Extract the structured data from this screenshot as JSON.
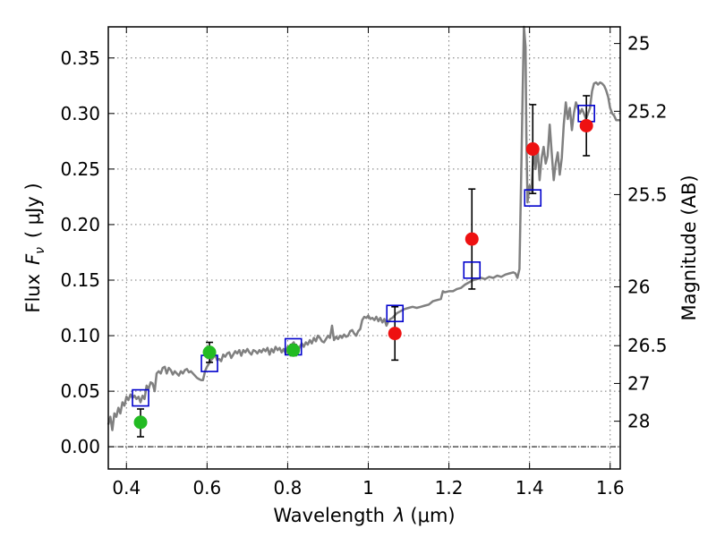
{
  "chart_data": {
    "type": "scatter",
    "xlabel_main": "Wavelength",
    "xlabel_symbol": "λ",
    "xlabel_unit": "(μm)",
    "ylabel_main": "Flux",
    "ylabel_symbol": "F",
    "ylabel_subscript": "ν",
    "ylabel_unit": "( μJy )",
    "y2label": "Magnitude (AB)",
    "xlim": [
      0.355,
      1.625
    ],
    "ylim": [
      -0.02,
      0.378
    ],
    "x_ticks": [
      {
        "value": 0.4,
        "label": "0.4"
      },
      {
        "value": 0.6,
        "label": "0.6"
      },
      {
        "value": 0.8,
        "label": "0.8"
      },
      {
        "value": 1.0,
        "label": "1"
      },
      {
        "value": 1.2,
        "label": "1.2"
      },
      {
        "value": 1.4,
        "label": "1.4"
      },
      {
        "value": 1.6,
        "label": "1.6"
      }
    ],
    "y_ticks": [
      {
        "value": 0.0,
        "label": "0.00"
      },
      {
        "value": 0.05,
        "label": "0.05"
      },
      {
        "value": 0.1,
        "label": "0.10"
      },
      {
        "value": 0.15,
        "label": "0.15"
      },
      {
        "value": 0.2,
        "label": "0.20"
      },
      {
        "value": 0.25,
        "label": "0.25"
      },
      {
        "value": 0.3,
        "label": "0.30"
      },
      {
        "value": 0.35,
        "label": "0.35"
      }
    ],
    "mag_ticks": [
      {
        "value": 0.363,
        "label": "25"
      },
      {
        "value": 0.302,
        "label": "25.2"
      },
      {
        "value": 0.227,
        "label": "25.5"
      },
      {
        "value": 0.144,
        "label": "26"
      },
      {
        "value": 0.091,
        "label": "26.5"
      },
      {
        "value": 0.057,
        "label": "27"
      },
      {
        "value": 0.023,
        "label": "28"
      }
    ],
    "grid": true,
    "zero_line": 0.0,
    "colors": {
      "model": "#808080",
      "model_points": "#0000cc",
      "optical": "#22bb22",
      "nir": "#ee1111",
      "errorbar": "#000000"
    },
    "model_spectrum": [
      [
        0.355,
        0.02
      ],
      [
        0.36,
        0.027
      ],
      [
        0.365,
        0.015
      ],
      [
        0.37,
        0.03
      ],
      [
        0.375,
        0.027
      ],
      [
        0.38,
        0.035
      ],
      [
        0.385,
        0.03
      ],
      [
        0.39,
        0.04
      ],
      [
        0.395,
        0.037
      ],
      [
        0.4,
        0.045
      ],
      [
        0.405,
        0.042
      ],
      [
        0.41,
        0.047
      ],
      [
        0.415,
        0.044
      ],
      [
        0.42,
        0.046
      ],
      [
        0.425,
        0.043
      ],
      [
        0.43,
        0.045
      ],
      [
        0.435,
        0.04
      ],
      [
        0.44,
        0.046
      ],
      [
        0.445,
        0.043
      ],
      [
        0.45,
        0.055
      ],
      [
        0.455,
        0.052
      ],
      [
        0.46,
        0.058
      ],
      [
        0.465,
        0.057
      ],
      [
        0.47,
        0.05
      ],
      [
        0.475,
        0.066
      ],
      [
        0.48,
        0.068
      ],
      [
        0.485,
        0.066
      ],
      [
        0.49,
        0.071
      ],
      [
        0.495,
        0.072
      ],
      [
        0.5,
        0.066
      ],
      [
        0.505,
        0.071
      ],
      [
        0.51,
        0.069
      ],
      [
        0.515,
        0.065
      ],
      [
        0.52,
        0.068
      ],
      [
        0.525,
        0.066
      ],
      [
        0.53,
        0.064
      ],
      [
        0.535,
        0.068
      ],
      [
        0.54,
        0.066
      ],
      [
        0.545,
        0.069
      ],
      [
        0.55,
        0.07
      ],
      [
        0.555,
        0.067
      ],
      [
        0.56,
        0.068
      ],
      [
        0.565,
        0.066
      ],
      [
        0.57,
        0.064
      ],
      [
        0.575,
        0.062
      ],
      [
        0.58,
        0.061
      ],
      [
        0.585,
        0.06
      ],
      [
        0.59,
        0.06
      ],
      [
        0.595,
        0.068
      ],
      [
        0.6,
        0.072
      ],
      [
        0.605,
        0.075
      ],
      [
        0.61,
        0.078
      ],
      [
        0.615,
        0.08
      ],
      [
        0.62,
        0.083
      ],
      [
        0.625,
        0.078
      ],
      [
        0.63,
        0.079
      ],
      [
        0.635,
        0.077
      ],
      [
        0.64,
        0.083
      ],
      [
        0.645,
        0.081
      ],
      [
        0.65,
        0.084
      ],
      [
        0.655,
        0.085
      ],
      [
        0.66,
        0.08
      ],
      [
        0.665,
        0.083
      ],
      [
        0.67,
        0.086
      ],
      [
        0.675,
        0.084
      ],
      [
        0.68,
        0.087
      ],
      [
        0.685,
        0.082
      ],
      [
        0.69,
        0.087
      ],
      [
        0.695,
        0.085
      ],
      [
        0.7,
        0.088
      ],
      [
        0.705,
        0.085
      ],
      [
        0.71,
        0.083
      ],
      [
        0.715,
        0.087
      ],
      [
        0.72,
        0.086
      ],
      [
        0.725,
        0.084
      ],
      [
        0.73,
        0.087
      ],
      [
        0.735,
        0.085
      ],
      [
        0.74,
        0.088
      ],
      [
        0.745,
        0.086
      ],
      [
        0.75,
        0.089
      ],
      [
        0.755,
        0.083
      ],
      [
        0.76,
        0.088
      ],
      [
        0.765,
        0.085
      ],
      [
        0.77,
        0.09
      ],
      [
        0.775,
        0.087
      ],
      [
        0.78,
        0.089
      ],
      [
        0.785,
        0.085
      ],
      [
        0.79,
        0.088
      ],
      [
        0.795,
        0.084
      ],
      [
        0.8,
        0.09
      ],
      [
        0.805,
        0.088
      ],
      [
        0.81,
        0.092
      ],
      [
        0.815,
        0.094
      ],
      [
        0.82,
        0.09
      ],
      [
        0.825,
        0.085
      ],
      [
        0.83,
        0.09
      ],
      [
        0.835,
        0.093
      ],
      [
        0.84,
        0.09
      ],
      [
        0.845,
        0.094
      ],
      [
        0.85,
        0.092
      ],
      [
        0.855,
        0.096
      ],
      [
        0.86,
        0.093
      ],
      [
        0.865,
        0.098
      ],
      [
        0.87,
        0.095
      ],
      [
        0.875,
        0.1
      ],
      [
        0.88,
        0.098
      ],
      [
        0.885,
        0.095
      ],
      [
        0.89,
        0.094
      ],
      [
        0.895,
        0.097
      ],
      [
        0.9,
        0.1
      ],
      [
        0.905,
        0.098
      ],
      [
        0.91,
        0.109
      ],
      [
        0.915,
        0.096
      ],
      [
        0.92,
        0.099
      ],
      [
        0.925,
        0.097
      ],
      [
        0.93,
        0.1
      ],
      [
        0.935,
        0.098
      ],
      [
        0.94,
        0.101
      ],
      [
        0.945,
        0.099
      ],
      [
        0.95,
        0.1
      ],
      [
        0.955,
        0.104
      ],
      [
        0.96,
        0.105
      ],
      [
        0.965,
        0.102
      ],
      [
        0.97,
        0.1
      ],
      [
        0.975,
        0.104
      ],
      [
        0.98,
        0.106
      ],
      [
        0.985,
        0.114
      ],
      [
        0.99,
        0.117
      ],
      [
        0.995,
        0.116
      ],
      [
        1.0,
        0.118
      ],
      [
        1.005,
        0.115
      ],
      [
        1.01,
        0.116
      ],
      [
        1.015,
        0.114
      ],
      [
        1.02,
        0.117
      ],
      [
        1.025,
        0.113
      ],
      [
        1.03,
        0.116
      ],
      [
        1.035,
        0.112
      ],
      [
        1.04,
        0.115
      ],
      [
        1.045,
        0.109
      ],
      [
        1.05,
        0.113
      ],
      [
        1.055,
        0.115
      ],
      [
        1.06,
        0.116
      ],
      [
        1.065,
        0.118
      ],
      [
        1.07,
        0.12
      ],
      [
        1.08,
        0.122
      ],
      [
        1.09,
        0.124
      ],
      [
        1.1,
        0.125
      ],
      [
        1.11,
        0.126
      ],
      [
        1.12,
        0.125
      ],
      [
        1.13,
        0.126
      ],
      [
        1.14,
        0.127
      ],
      [
        1.15,
        0.128
      ],
      [
        1.16,
        0.131
      ],
      [
        1.17,
        0.132
      ],
      [
        1.18,
        0.133
      ],
      [
        1.185,
        0.14
      ],
      [
        1.19,
        0.139
      ],
      [
        1.2,
        0.14
      ],
      [
        1.21,
        0.14
      ],
      [
        1.22,
        0.142
      ],
      [
        1.23,
        0.143
      ],
      [
        1.24,
        0.146
      ],
      [
        1.25,
        0.148
      ],
      [
        1.26,
        0.15
      ],
      [
        1.27,
        0.151
      ],
      [
        1.28,
        0.152
      ],
      [
        1.29,
        0.151
      ],
      [
        1.3,
        0.153
      ],
      [
        1.31,
        0.152
      ],
      [
        1.32,
        0.154
      ],
      [
        1.33,
        0.153
      ],
      [
        1.34,
        0.155
      ],
      [
        1.35,
        0.156
      ],
      [
        1.36,
        0.157
      ],
      [
        1.365,
        0.156
      ],
      [
        1.37,
        0.152
      ],
      [
        1.375,
        0.16
      ],
      [
        1.38,
        0.26
      ],
      [
        1.383,
        0.32
      ],
      [
        1.386,
        0.378
      ],
      [
        1.39,
        0.36
      ],
      [
        1.392,
        0.28
      ],
      [
        1.395,
        0.22
      ],
      [
        1.4,
        0.235
      ],
      [
        1.405,
        0.23
      ],
      [
        1.41,
        0.27
      ],
      [
        1.415,
        0.25
      ],
      [
        1.42,
        0.27
      ],
      [
        1.425,
        0.24
      ],
      [
        1.43,
        0.26
      ],
      [
        1.435,
        0.27
      ],
      [
        1.44,
        0.255
      ],
      [
        1.445,
        0.262
      ],
      [
        1.45,
        0.29
      ],
      [
        1.455,
        0.265
      ],
      [
        1.46,
        0.24
      ],
      [
        1.465,
        0.255
      ],
      [
        1.47,
        0.265
      ],
      [
        1.475,
        0.245
      ],
      [
        1.48,
        0.26
      ],
      [
        1.485,
        0.29
      ],
      [
        1.49,
        0.31
      ],
      [
        1.495,
        0.295
      ],
      [
        1.5,
        0.305
      ],
      [
        1.505,
        0.285
      ],
      [
        1.51,
        0.3
      ],
      [
        1.515,
        0.31
      ],
      [
        1.52,
        0.305
      ],
      [
        1.525,
        0.3
      ],
      [
        1.53,
        0.304
      ],
      [
        1.535,
        0.3
      ],
      [
        1.54,
        0.295
      ],
      [
        1.545,
        0.3
      ],
      [
        1.55,
        0.305
      ],
      [
        1.555,
        0.32
      ],
      [
        1.56,
        0.327
      ],
      [
        1.565,
        0.328
      ],
      [
        1.57,
        0.326
      ],
      [
        1.575,
        0.328
      ],
      [
        1.58,
        0.327
      ],
      [
        1.585,
        0.325
      ],
      [
        1.59,
        0.321
      ],
      [
        1.595,
        0.315
      ],
      [
        1.6,
        0.305
      ],
      [
        1.605,
        0.3
      ],
      [
        1.61,
        0.298
      ],
      [
        1.615,
        0.294
      ],
      [
        1.625,
        0.294
      ]
    ],
    "model_points": [
      {
        "x": 0.435,
        "y": 0.044
      },
      {
        "x": 0.606,
        "y": 0.075
      },
      {
        "x": 0.814,
        "y": 0.09
      },
      {
        "x": 1.066,
        "y": 0.12
      },
      {
        "x": 1.257,
        "y": 0.159
      },
      {
        "x": 1.408,
        "y": 0.224
      },
      {
        "x": 1.541,
        "y": 0.3
      }
    ],
    "optical_points": [
      {
        "x": 0.435,
        "y": 0.022,
        "err_low": 0.013,
        "err_high": 0.012
      },
      {
        "x": 0.606,
        "y": 0.085,
        "err_low": 0.009,
        "err_high": 0.009
      },
      {
        "x": 0.814,
        "y": 0.087,
        "err_low": 0.005,
        "err_high": 0.005
      }
    ],
    "nir_points": [
      {
        "x": 1.066,
        "y": 0.102,
        "err_low": 0.024,
        "err_high": 0.024
      },
      {
        "x": 1.257,
        "y": 0.187,
        "err_low": 0.045,
        "err_high": 0.045
      },
      {
        "x": 1.408,
        "y": 0.268,
        "err_low": 0.04,
        "err_high": 0.04
      },
      {
        "x": 1.541,
        "y": 0.289,
        "err_low": 0.027,
        "err_high": 0.027
      }
    ]
  }
}
